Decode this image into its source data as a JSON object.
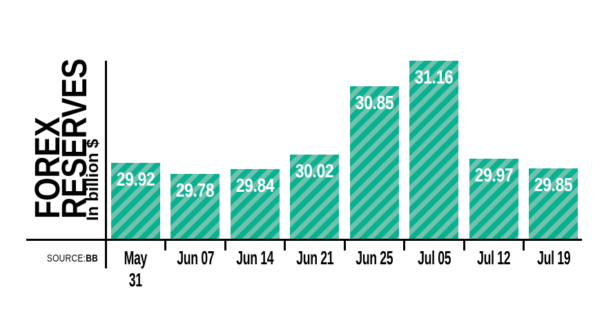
{
  "chart_data": {
    "type": "bar",
    "title": "FOREX RESERVES",
    "title_display": "FOREX\nRESERVES",
    "ylabel": "In billion $",
    "source_label": "SOURCE:",
    "source_value": "BB",
    "categories": [
      "May 31",
      "Jun 07",
      "Jun 14",
      "Jun 21",
      "Jun 25",
      "Jul 05",
      "Jul 12",
      "Jul 19"
    ],
    "values": [
      29.92,
      29.78,
      29.84,
      30.02,
      30.85,
      31.16,
      29.97,
      29.85
    ],
    "bar_labels": [
      "29.92",
      "29.78",
      "29.84",
      "30.02",
      "30.85",
      "31.16",
      "29.97",
      "29.85"
    ],
    "ylim": [
      28.99,
      31.2
    ],
    "grid": false,
    "legend": false,
    "colors": {
      "bar_stripe_dark": "#08b191",
      "bar_stripe_light": "#71c2ac",
      "bar_value_text": "#ffffff",
      "axis": "#000000",
      "text": "#000000"
    }
  }
}
